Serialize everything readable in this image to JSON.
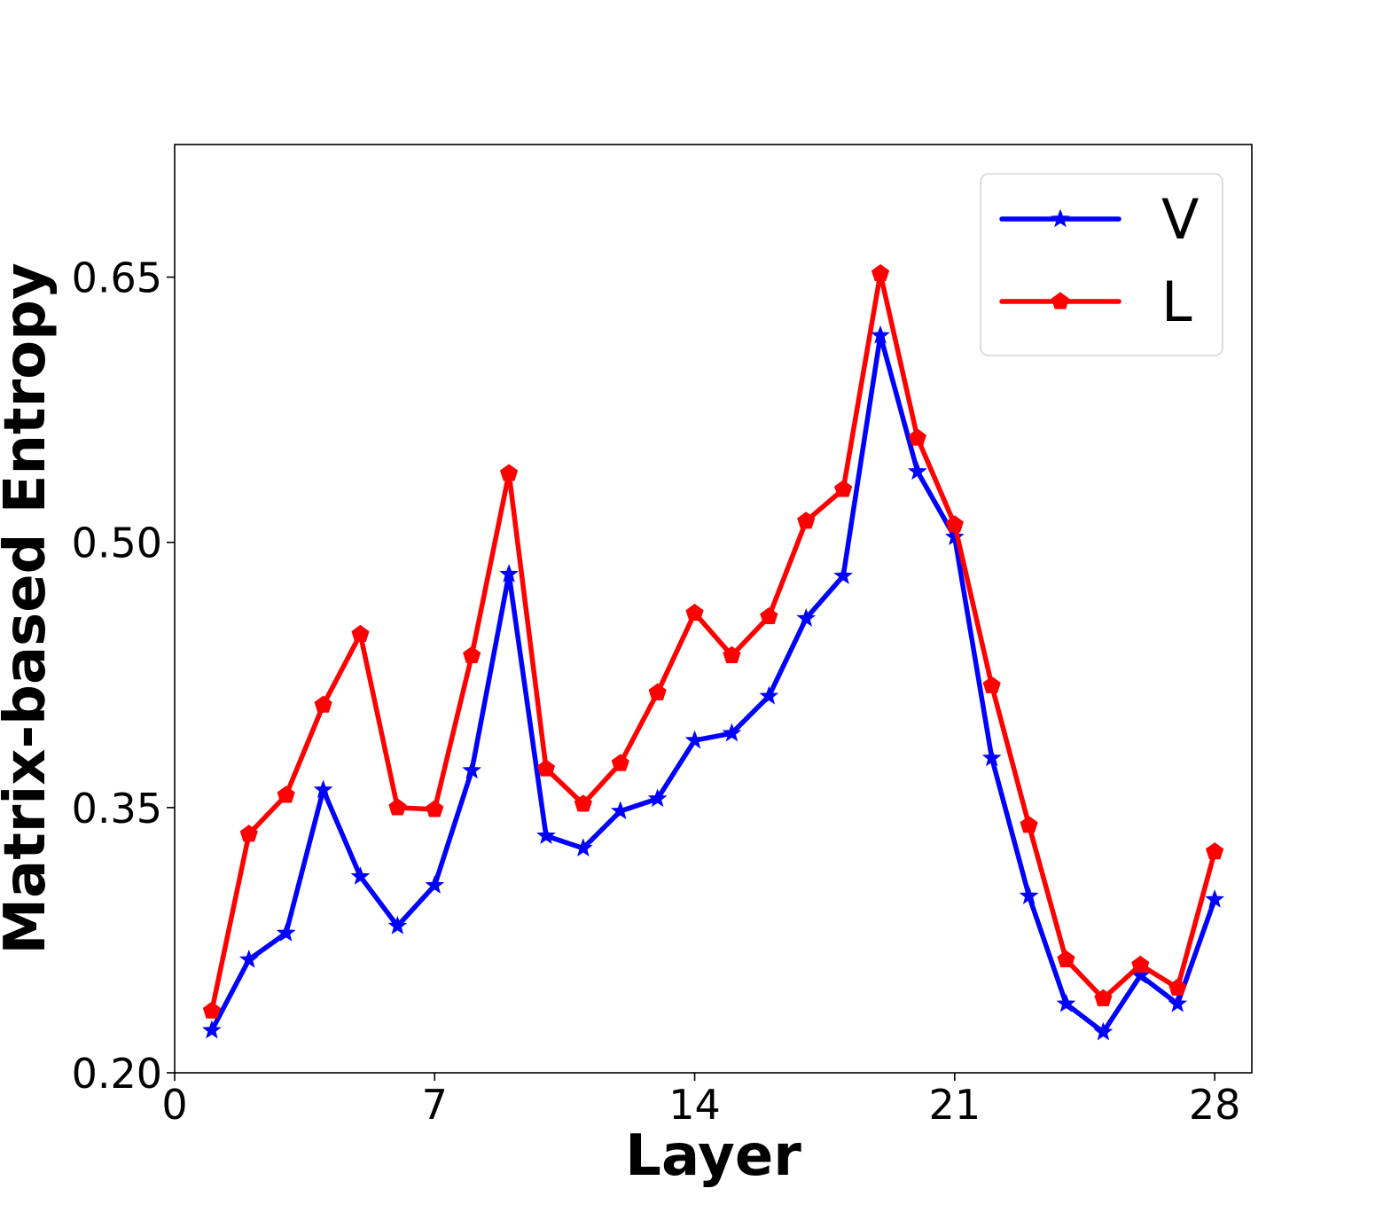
{
  "chart_data": {
    "type": "line",
    "title": "",
    "xlabel": "Layer",
    "ylabel": "Matrix-based Entropy",
    "xlim": [
      0,
      29
    ],
    "ylim": [
      0.2,
      0.725
    ],
    "xticks": [
      0,
      7,
      14,
      21,
      28
    ],
    "xtick_labels": [
      "0",
      "7",
      "14",
      "21",
      "28"
    ],
    "yticks": [
      0.2,
      0.35,
      0.5,
      0.65
    ],
    "ytick_labels": [
      "0.20",
      "0.35",
      "0.50",
      "0.65"
    ],
    "grid": false,
    "legend_position": "top-right",
    "x": [
      1,
      2,
      3,
      4,
      5,
      6,
      7,
      8,
      9,
      10,
      11,
      12,
      13,
      14,
      15,
      16,
      17,
      18,
      19,
      20,
      21,
      22,
      23,
      24,
      25,
      26,
      27,
      28
    ],
    "series": [
      {
        "name": "V",
        "color": "#0000ff",
        "marker": "star",
        "values": [
          0.224,
          0.264,
          0.279,
          0.36,
          0.311,
          0.283,
          0.306,
          0.371,
          0.482,
          0.334,
          0.327,
          0.348,
          0.355,
          0.388,
          0.392,
          0.413,
          0.457,
          0.481,
          0.617,
          0.54,
          0.503,
          0.378,
          0.3,
          0.239,
          0.223,
          0.255,
          0.239,
          0.298
        ]
      },
      {
        "name": "L",
        "color": "#ff0000",
        "marker": "pentagon",
        "values": [
          0.235,
          0.335,
          0.357,
          0.408,
          0.448,
          0.35,
          0.349,
          0.436,
          0.539,
          0.372,
          0.352,
          0.375,
          0.415,
          0.46,
          0.436,
          0.458,
          0.512,
          0.53,
          0.652,
          0.559,
          0.51,
          0.419,
          0.34,
          0.264,
          0.242,
          0.261,
          0.248,
          0.325
        ]
      }
    ]
  }
}
